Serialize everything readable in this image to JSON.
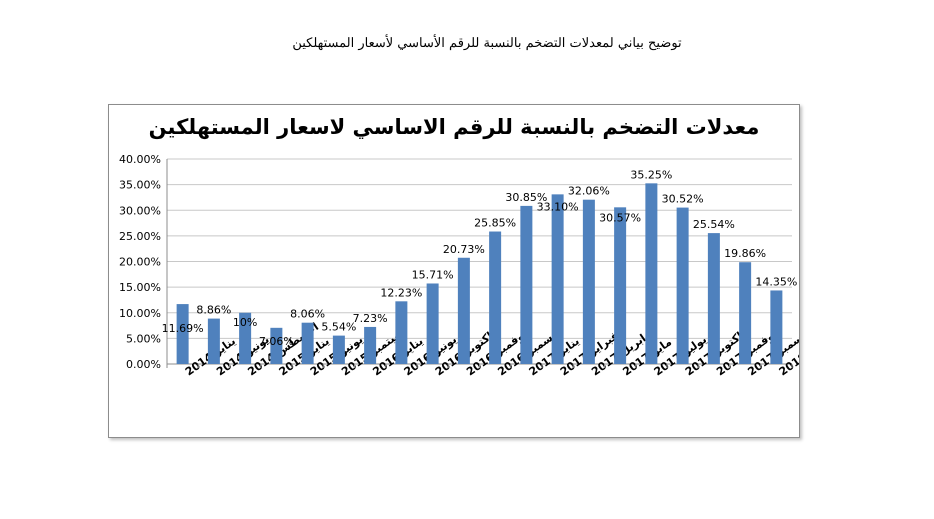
{
  "page": {
    "caption": "توضيح بياني لمعدلات التضخم بالنسبة للرقم الأساسي لأسعار المستهلكين"
  },
  "chart_data": {
    "type": "bar",
    "title": "معدلات التضخم بالنسبة للرقم الاساسي لاسعار المستهلكين",
    "categories": [
      "يناير 2014",
      "يونيو 2014",
      "اغسطس 2014",
      "يناير 2015",
      "يونيو 2015",
      "سبتمبر 2015",
      "يناير 2016",
      "يونيو 2016",
      "اكتوبر 2016",
      "نوفمبر 2016",
      "ديسمبر 2016",
      "يناير 2017",
      "فبراير 2017",
      "ابريل 2017",
      "مايو 2017",
      "يوليو 2017",
      "اكتوبر 2017",
      "نوفمبر 2017",
      "ديسمبر 2017",
      "يناير 2018"
    ],
    "values": [
      11.69,
      8.86,
      10,
      7.06,
      8.06,
      5.54,
      7.23,
      12.23,
      15.71,
      20.73,
      25.85,
      30.85,
      33.1,
      32.06,
      30.57,
      35.25,
      30.52,
      25.54,
      19.86,
      14.35
    ],
    "data_labels": [
      "11.69%",
      "8.86%",
      "10%",
      "7.06%",
      "8.06%",
      "5.54%",
      "7.23%",
      "12.23%",
      "15.71%",
      "20.73%",
      "25.85%",
      "30.85%",
      "33.10%",
      "32.06%",
      "30.57%",
      "35.25%",
      "30.52%",
      "25.54%",
      "19.86%",
      "14.35%"
    ],
    "y_ticks": [
      "0.00%",
      "5.00%",
      "10.00%",
      "15.00%",
      "20.00%",
      "25.00%",
      "30.00%",
      "35.00%",
      "40.00%"
    ],
    "ylim": [
      0,
      40
    ],
    "grid": true,
    "legend": "none",
    "bar_color": "#4f81bd"
  }
}
